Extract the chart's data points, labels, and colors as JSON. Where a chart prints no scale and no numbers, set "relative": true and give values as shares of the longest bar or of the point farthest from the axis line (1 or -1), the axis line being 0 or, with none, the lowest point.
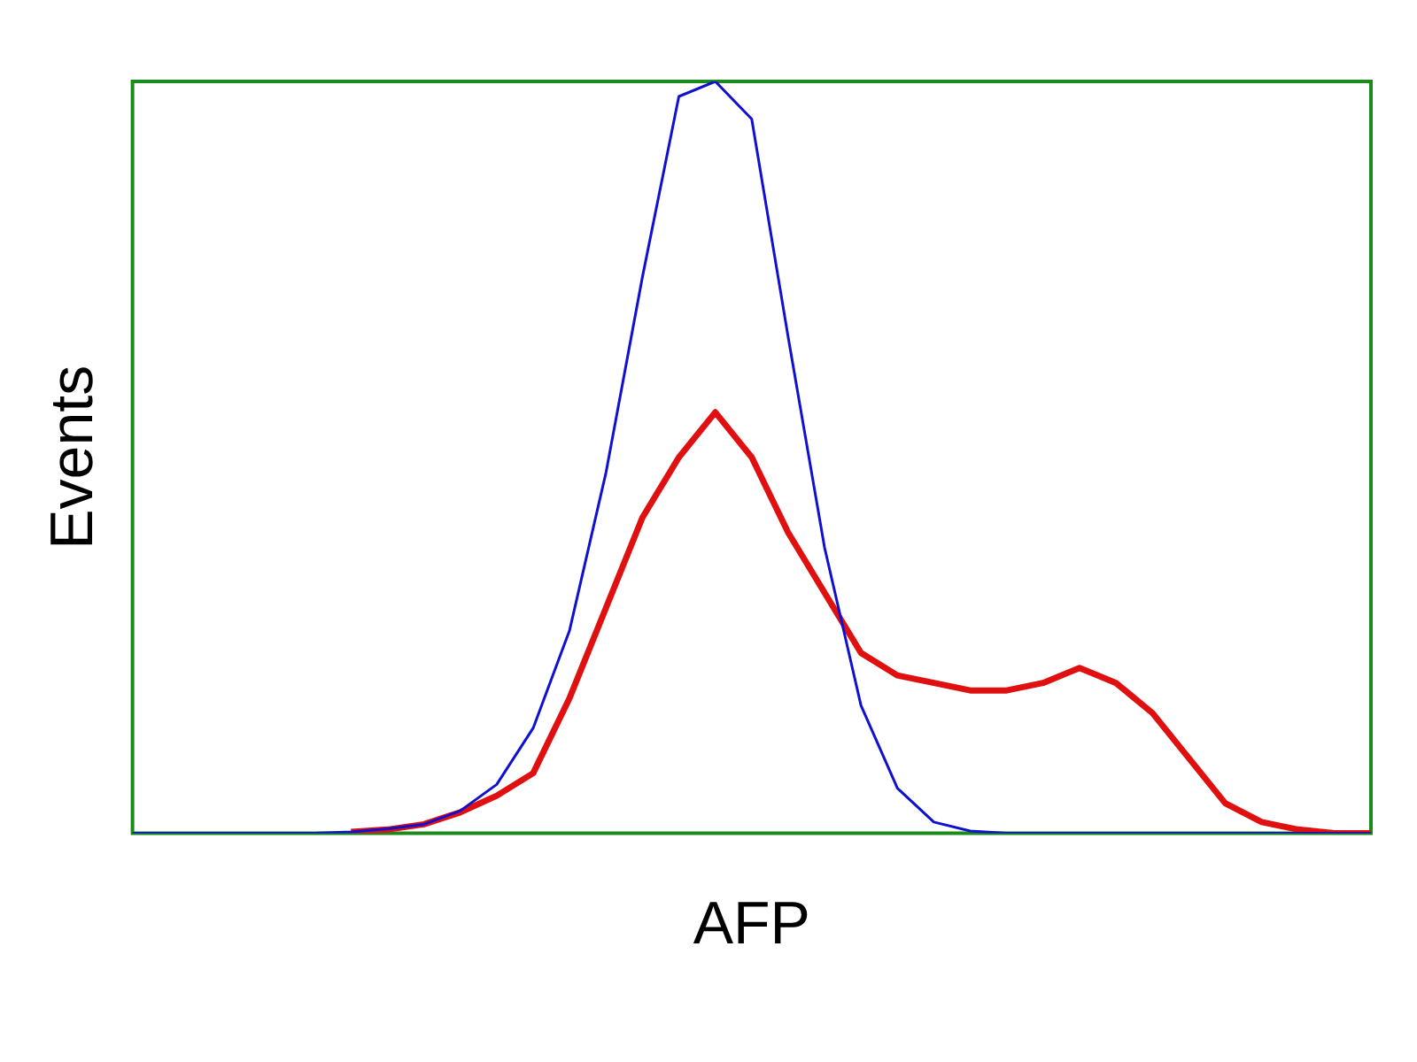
{
  "chart_data": {
    "type": "line",
    "relative": true,
    "xlabel": "AFP",
    "ylabel": "Events",
    "legend": false,
    "grid": false,
    "marker": "none",
    "categories": [
      null,
      null,
      null,
      null,
      null,
      null,
      null,
      null,
      null,
      null,
      null,
      null,
      null,
      null,
      null,
      null,
      null,
      null,
      null,
      null,
      null,
      null,
      null,
      null,
      null,
      null,
      null,
      null,
      null,
      null,
      null,
      null,
      null,
      null,
      null
    ],
    "series": [
      {
        "color": "#1010d0",
        "values": [
          0,
          0,
          0,
          0,
          0,
          0,
          0.002,
          0.006,
          0.012,
          0.03,
          0.065,
          0.14,
          0.27,
          0.48,
          0.74,
          0.98,
          1,
          0.95,
          0.66,
          0.38,
          0.17,
          0.06,
          0.015,
          0.003,
          0,
          0,
          0,
          0,
          0,
          0,
          0,
          0,
          0,
          0,
          0
        ]
      },
      {
        "color": "#e01010",
        "values": [
          null,
          null,
          null,
          null,
          null,
          null,
          0.002,
          0.005,
          0.012,
          0.028,
          0.05,
          0.08,
          0.18,
          0.3,
          0.42,
          0.5,
          0.56,
          0.5,
          0.4,
          0.32,
          0.24,
          0.21,
          0.2,
          0.19,
          0.19,
          0.2,
          0.22,
          0.2,
          0.16,
          0.1,
          0.04,
          0.015,
          0.005,
          0,
          0
        ]
      }
    ]
  }
}
